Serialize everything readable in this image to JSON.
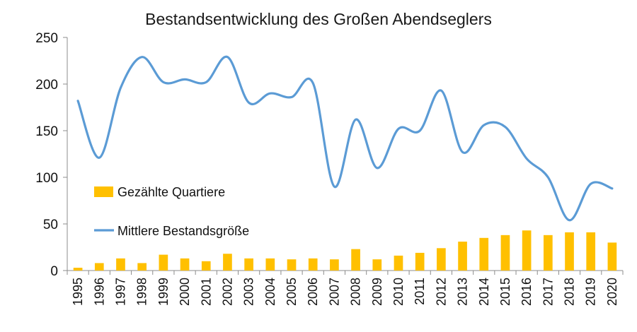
{
  "chart_data": {
    "type": "bar+line",
    "title": "Bestandsentwicklung des Großen Abendseglers",
    "xlabel": "",
    "ylabel": "",
    "ylim": [
      0,
      250
    ],
    "yticks": [
      0,
      50,
      100,
      150,
      200,
      250
    ],
    "grid": false,
    "legend_position": "left, inside plot",
    "categories": [
      "1995",
      "1996",
      "1997",
      "1998",
      "1999",
      "2000",
      "2001",
      "2002",
      "2003",
      "2004",
      "2005",
      "2006",
      "2007",
      "2008",
      "2009",
      "2010",
      "2011",
      "2012",
      "2013",
      "2014",
      "2015",
      "2016",
      "2017",
      "2018",
      "2019",
      "2020"
    ],
    "series": [
      {
        "name": "Gezählte Quartiere",
        "type": "bar",
        "color": "#FFC000",
        "values": [
          3,
          8,
          13,
          8,
          17,
          13,
          10,
          18,
          13,
          13,
          12,
          13,
          12,
          23,
          12,
          16,
          19,
          24,
          31,
          35,
          38,
          43,
          38,
          41,
          41,
          30
        ]
      },
      {
        "name": "Mittlere Bestandsgröße",
        "type": "line",
        "color": "#5B9BD5",
        "values": [
          182,
          121,
          196,
          229,
          202,
          205,
          202,
          229,
          180,
          190,
          186,
          201,
          90,
          162,
          110,
          152,
          150,
          193,
          127,
          156,
          154,
          120,
          100,
          54,
          93,
          88
        ]
      }
    ]
  }
}
